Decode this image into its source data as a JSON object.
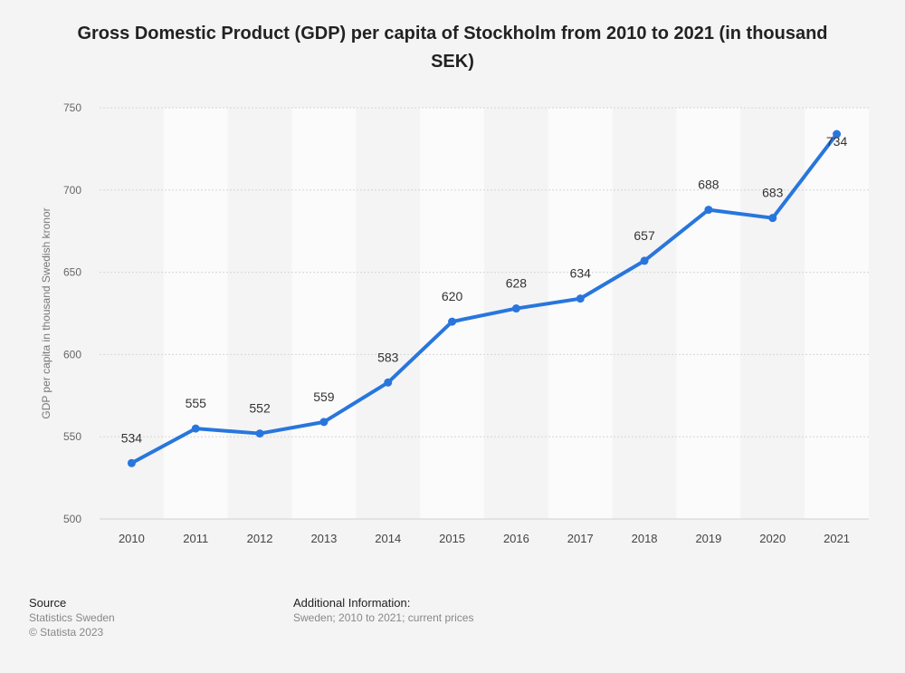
{
  "title": "Gross Domestic Product (GDP) per capita of Stockholm from 2010 to 2021 (in thousand SEK)",
  "chart_data": {
    "type": "line",
    "title": "Gross Domestic Product (GDP) per capita of Stockholm from 2010 to 2021 (in thousand SEK)",
    "xlabel": "",
    "ylabel": "GDP per capita in thousand Swedish kronor",
    "categories": [
      "2010",
      "2011",
      "2012",
      "2013",
      "2014",
      "2015",
      "2016",
      "2017",
      "2018",
      "2019",
      "2020",
      "2021"
    ],
    "values": [
      534,
      555,
      552,
      559,
      583,
      620,
      628,
      634,
      657,
      688,
      683,
      734
    ],
    "ylim": [
      500,
      750
    ],
    "yticks": [
      500,
      550,
      600,
      650,
      700,
      750
    ],
    "grid": true,
    "line_color": "#2876dd"
  },
  "footer": {
    "source_heading": "Source",
    "source_lines": [
      "Statistics Sweden",
      "© Statista 2023"
    ],
    "info_heading": "Additional Information:",
    "info_text": "Sweden; 2010 to 2021; current prices"
  }
}
